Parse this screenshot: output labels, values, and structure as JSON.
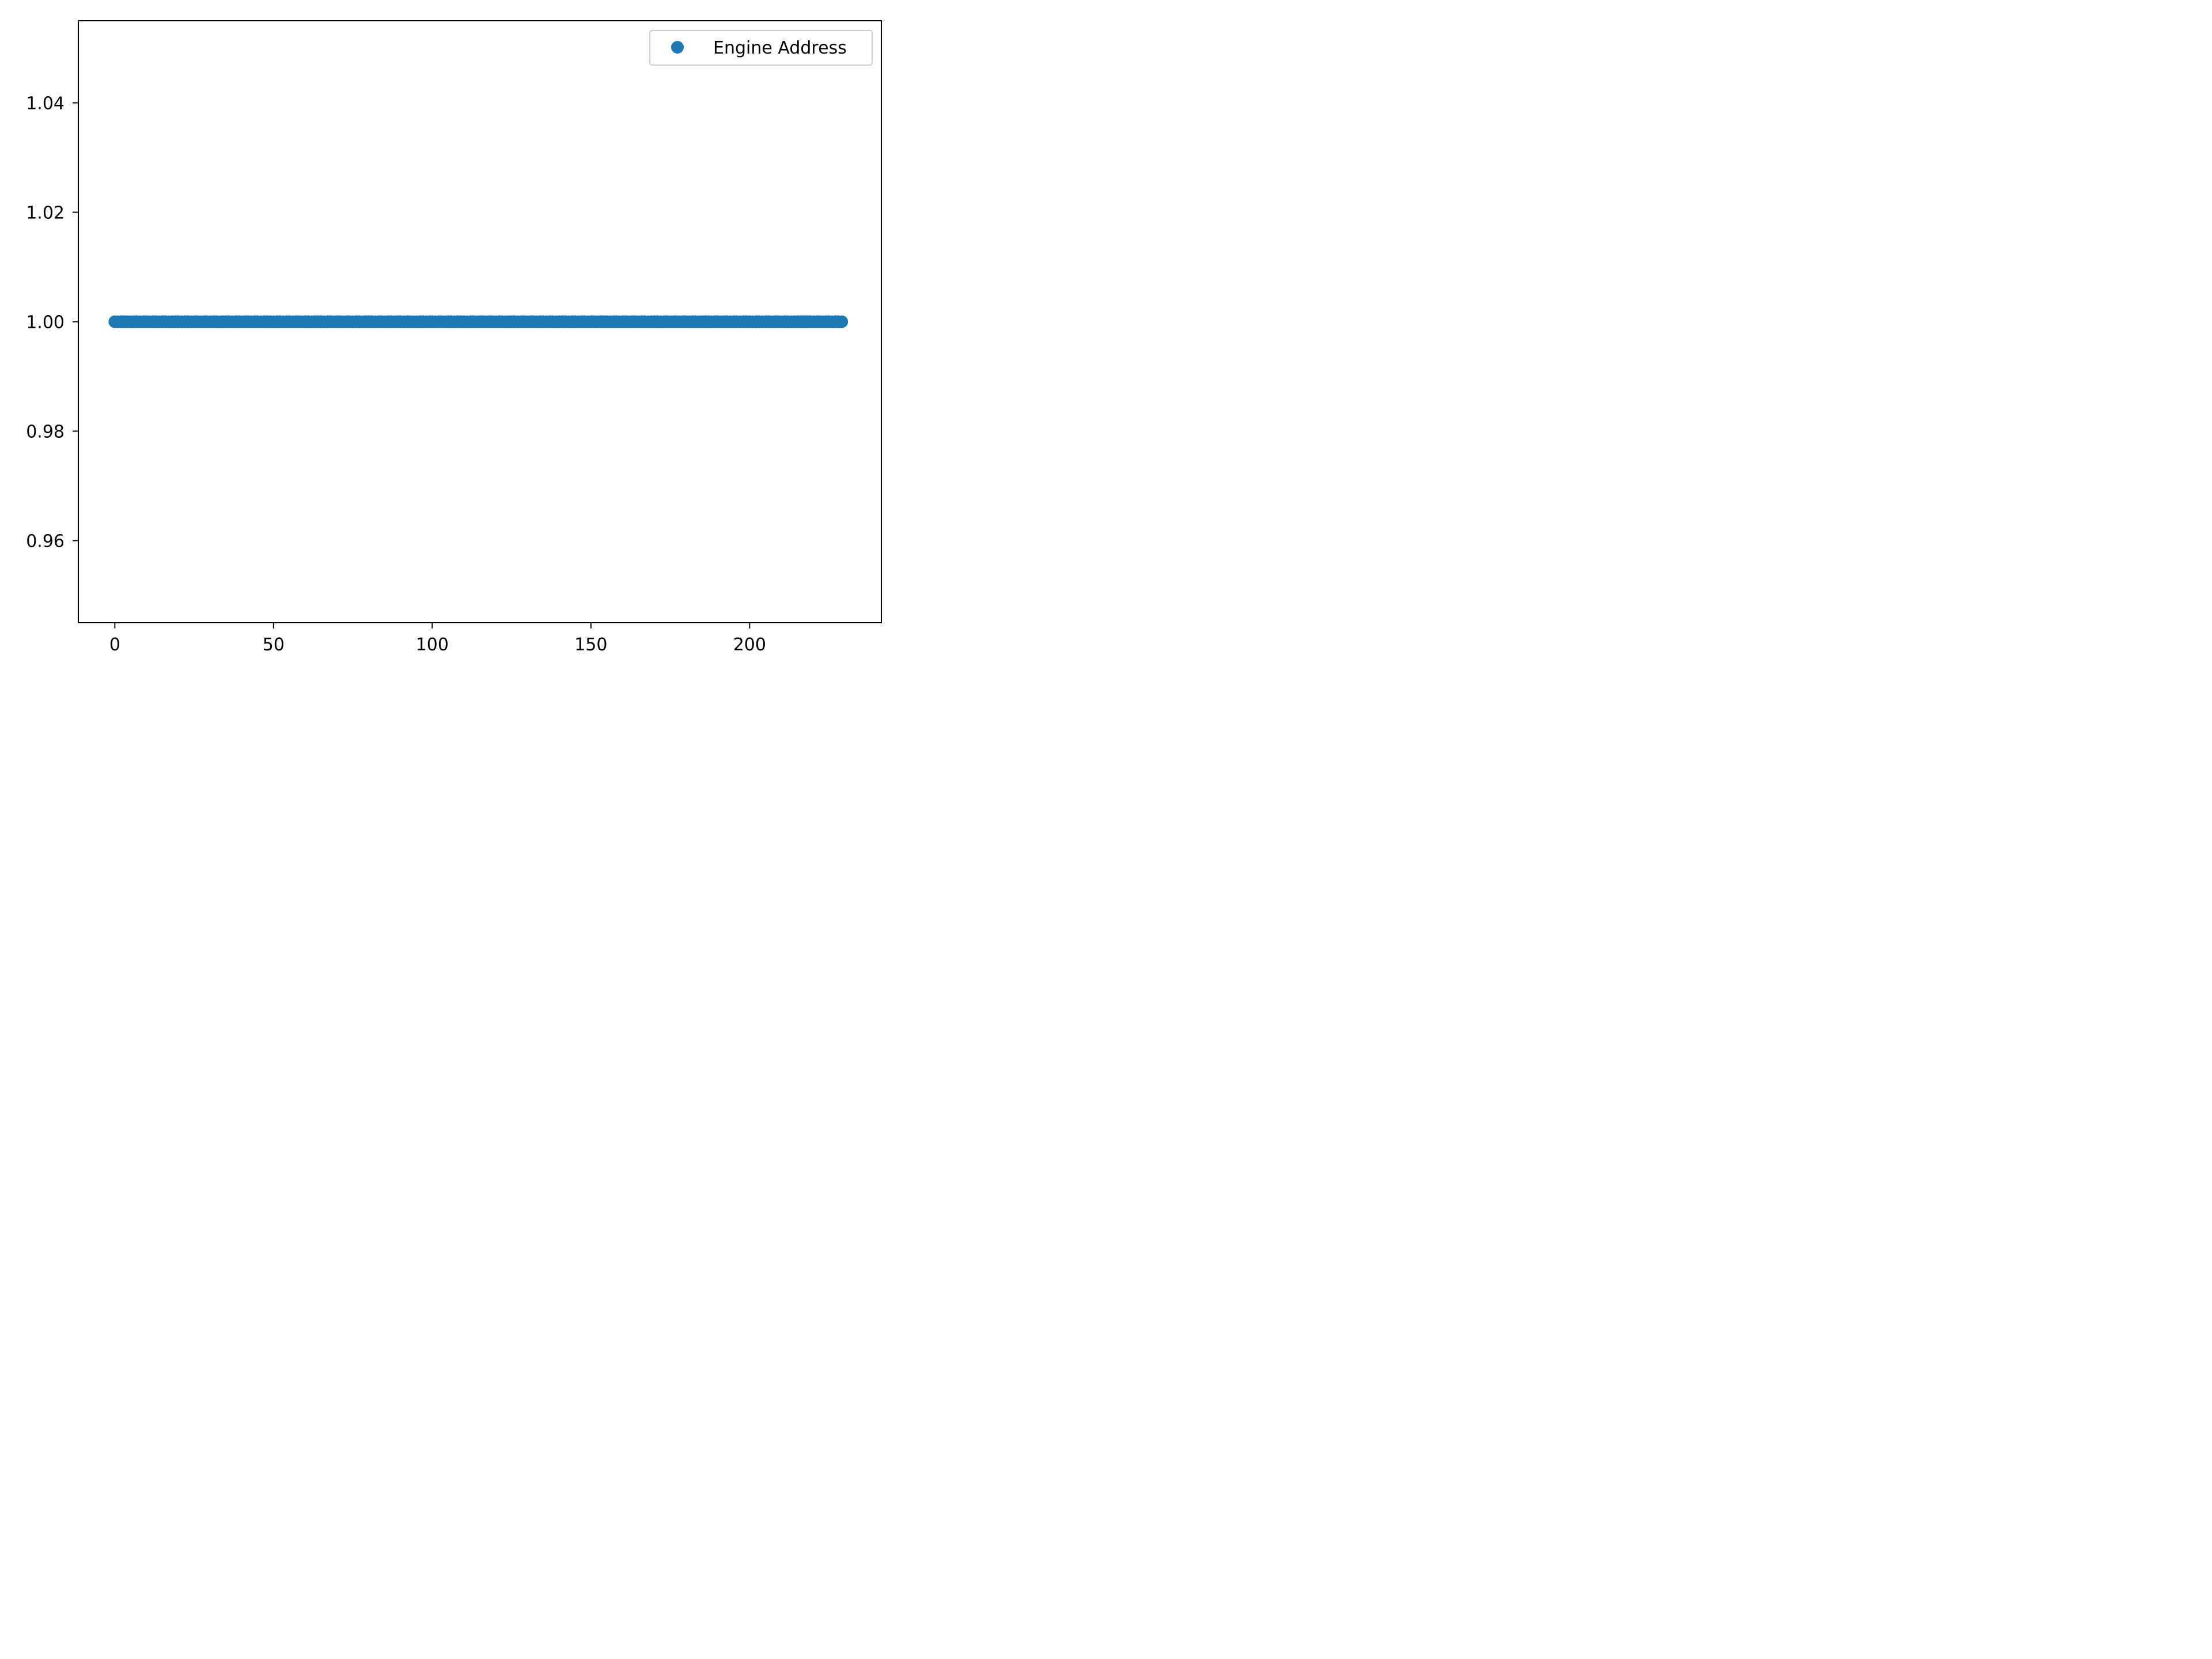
{
  "chart_data": {
    "type": "scatter",
    "title": "",
    "xlabel": "",
    "ylabel": "",
    "xlim": [
      -11.5,
      241.5
    ],
    "ylim": [
      0.945,
      1.055
    ],
    "xticks": [
      0,
      50,
      100,
      150,
      200
    ],
    "xtick_labels": [
      "0",
      "50",
      "100",
      "150",
      "200"
    ],
    "yticks": [
      0.96,
      0.98,
      1.0,
      1.02,
      1.04
    ],
    "ytick_labels": [
      "0.96",
      "0.98",
      "1.00",
      "1.02",
      "1.04"
    ],
    "grid": false,
    "legend": {
      "position": "top-right",
      "entries": [
        "Engine Address"
      ]
    },
    "series": [
      {
        "name": "Engine Address",
        "color": "#1f77b4",
        "marker": "circle",
        "x_start": 0,
        "x_end": 229,
        "x_step": 1,
        "y_constant": 1.0
      }
    ]
  }
}
